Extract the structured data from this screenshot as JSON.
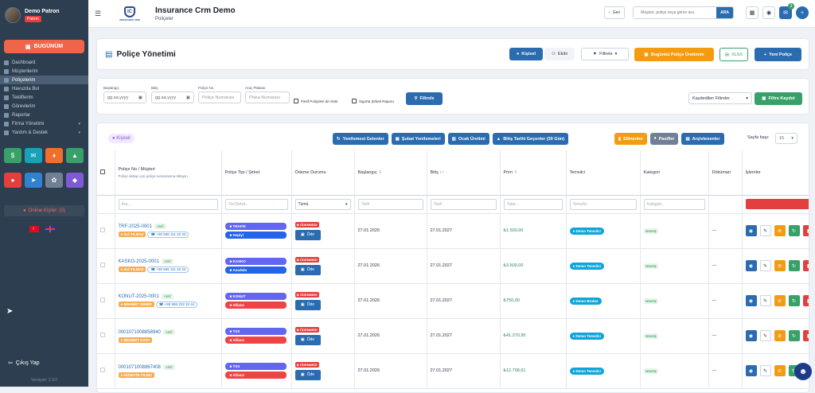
{
  "sidebar": {
    "user_name": "Demo Patron",
    "user_role": "Patron",
    "today_label": "BUGÜNÜM",
    "nav": [
      "Dashboard",
      "Müşterilerim",
      "Poliçelerim",
      "Havuzda Bul",
      "Tekliflerim",
      "Görevlerim",
      "Raporlar",
      "Firma Yönetimi",
      "Yardım & Destek"
    ],
    "online_label": "Online Kişiler: (0)",
    "logout_label": "Çıkış Yap",
    "version": "Versiyon: 2.9.0"
  },
  "topbar": {
    "app_title": "Insurance Crm Demo",
    "subtitle": "Poliçeler",
    "logo_text": "INSURANCE CRM",
    "back_label": "Geri",
    "search_placeholder": "Müşteri, poliçe veya görev ara",
    "search_button": "ARA",
    "notification_count": "3"
  },
  "header": {
    "page_title": "Poliçe Yönetimi",
    "tab_personal": "Kişisel",
    "tab_team": "Ekibi",
    "filters_label": "Filtrele",
    "today_production": "Bugünkü Poliçe Üretimim",
    "xlsx": "XLSX",
    "new_policy": "Yeni Poliçe"
  },
  "filters": {
    "start_label": "Başlangıç",
    "end_label": "Bitiş",
    "date_placeholder": "gg.aa.yyyy",
    "policy_no_label": "Poliçe No",
    "policy_no_placeholder": "Poliçe Numarası",
    "plate_label": "Araç Plakası",
    "plate_placeholder": "Plaka Numarası",
    "passive_label": "Pasif Poliçeleri de Getir",
    "cigarette_label": "Sigorta Şirketi Raporu",
    "filter_button": "Filtrele",
    "saved_filters": "Kaydedilen Filtreler",
    "save_filter": "Filtre Kaydet"
  },
  "table_toolbar": {
    "personal_chip": "Kişisel",
    "buttons": [
      "Yenilemesi Gelenler",
      "Şubat Yenilemeleri",
      "Ocak Üretimi",
      "Bitiş Tarihi Geçenler (30 Gün)",
      "Silinenler",
      "Pasifler",
      "Arşivlenenler"
    ],
    "page_size_label": "Sayfa başı:",
    "page_size": "15"
  },
  "columns": {
    "policy": "Poliçe No / Müşteri",
    "policy_hint": "Poliçe detayı için poliçe numarasına tıklayın.",
    "type": "Poliçe Tipi / Şirket",
    "payment": "Ödeme Durumu",
    "start": "Başlangıç",
    "end": "Bitiş",
    "premium": "Prim",
    "agent": "Temsilci",
    "category": "Kategori",
    "document": "Döküman",
    "actions": "İşlemler"
  },
  "filter_row": {
    "policy": "Ara...",
    "type": "Tür/Şirket...",
    "payment": "Tümü",
    "start": "Tarih",
    "end": "Tarih",
    "premium": "Tutar...",
    "agent": "Temsilci",
    "category": "Kategori..."
  },
  "rows": [
    {
      "no": "TRF-2025-0001",
      "status": "Aktif",
      "customer": "ALİ YILMAZ",
      "phone": "+90 555 111 22 33",
      "type": "TRAFİK",
      "company": "Hepiyi",
      "payment": "ÖDENMEDİ",
      "pay_btn": "Öde",
      "start": "27.01.2026",
      "end": "27.01.2027",
      "premium": "₺1.500,00",
      "agent": "Demo Temsilci",
      "category": "YENİ İŞ",
      "doc": "—"
    },
    {
      "no": "KASKO-2025-0001",
      "status": "Aktif",
      "customer": "ALİ YILMAZ",
      "phone": "+90 555 111 22 33",
      "type": "KASKO",
      "company": "Anadolu",
      "payment": "ÖDENMEDİ",
      "pay_btn": "Öde",
      "start": "27.01.2026",
      "end": "27.01.2027",
      "premium": "₺3.500,00",
      "agent": "Demo Temsilci",
      "category": "YENİ İŞ",
      "doc": "—"
    },
    {
      "no": "KONUT-2025-0001",
      "status": "Aktif",
      "customer": "MEHMET DEMİR",
      "phone": "+90 555 222 33 44",
      "type": "KONUT",
      "company": "Allianz",
      "payment": "ÖDENMEDİ",
      "pay_btn": "Öde",
      "start": "27.01.2026",
      "end": "27.01.2027",
      "premium": "₺750,00",
      "agent": "Demo Broker",
      "category": "YENİ İŞ",
      "doc": "—"
    },
    {
      "no": "0001071008858940",
      "status": "Aktif",
      "customer": "MEHMET KAYA",
      "phone": "",
      "type": "TSS",
      "company": "Allianz",
      "payment": "ÖDENMEDİ",
      "pay_btn": "Öde",
      "start": "27.01.2026",
      "end": "27.01.2027",
      "premium": "₺41.370,95",
      "agent": "Demo Temsilci",
      "category": "YENİ İŞ",
      "doc": "—"
    },
    {
      "no": "0001071008867408",
      "status": "Aktif",
      "customer": "HÜSEYİN YILDIZ",
      "phone": "",
      "type": "TSS",
      "company": "Allianz",
      "payment": "ÖDENMEDİ",
      "pay_btn": "Öde",
      "start": "27.01.2026",
      "end": "27.01.2027",
      "premium": "₺12.708,61",
      "agent": "Demo Temsilci",
      "category": "YENİ İŞ",
      "doc": "—"
    }
  ],
  "colors": {
    "sidebar": "#2d3e50",
    "primary": "#2b6cb0",
    "orange": "#f39c12",
    "green": "#38a169",
    "red": "#e53e3e",
    "type_pill": "#6366f1",
    "company_blue": "#2563eb",
    "company_red": "#ef4444"
  }
}
